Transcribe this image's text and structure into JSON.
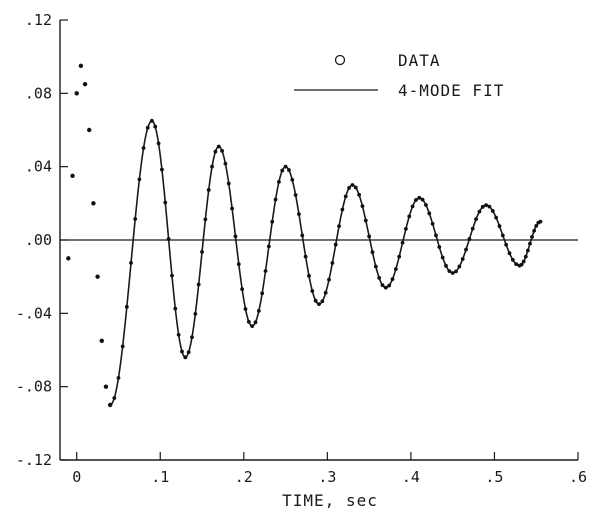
{
  "chart_data": {
    "type": "scatter",
    "title": "",
    "xlabel": "TIME, sec",
    "ylabel": "",
    "xlim": [
      -0.02,
      0.6
    ],
    "ylim": [
      -0.12,
      0.12
    ],
    "x_ticks": [
      0,
      0.1,
      0.2,
      0.3,
      0.4,
      0.5,
      0.6
    ],
    "x_tick_labels": [
      "0",
      ".1",
      ".2",
      ".3",
      ".4",
      ".5",
      ".6"
    ],
    "y_ticks": [
      0.12,
      0.08,
      0.04,
      0.0,
      -0.04,
      -0.08,
      -0.12
    ],
    "y_tick_labels": [
      ".12",
      ".08",
      ".04",
      ".00",
      "-.04",
      "-.08",
      "-.12"
    ],
    "grid": false,
    "zero_line": true,
    "legend": {
      "placement": "top-right",
      "entries": [
        {
          "label": "DATA",
          "marker": "circle"
        },
        {
          "label": "4-MODE FIT",
          "marker": "line"
        }
      ]
    },
    "series": [
      {
        "name": "DATA",
        "kind": "points",
        "x": [
          -0.01,
          -0.005,
          0.0,
          0.005,
          0.01,
          0.015,
          0.02,
          0.025,
          0.03,
          0.035,
          0.04
        ],
        "y": [
          -0.01,
          0.035,
          0.08,
          0.095,
          0.085,
          0.06,
          0.02,
          -0.02,
          -0.055,
          -0.08,
          -0.09
        ]
      },
      {
        "name": "4-MODE FIT",
        "kind": "line",
        "x": [
          0.04,
          0.09,
          0.13,
          0.17,
          0.21,
          0.25,
          0.29,
          0.33,
          0.37,
          0.41,
          0.45,
          0.49,
          0.53,
          0.555
        ],
        "y": [
          -0.09,
          0.065,
          -0.064,
          0.051,
          -0.047,
          0.04,
          -0.035,
          0.03,
          -0.026,
          0.023,
          -0.018,
          0.019,
          -0.014,
          0.01
        ]
      }
    ]
  }
}
